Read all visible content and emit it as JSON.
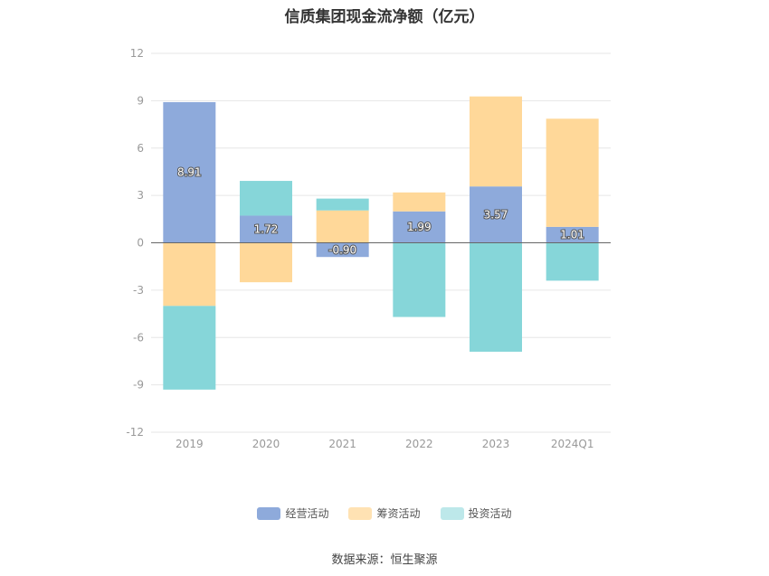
{
  "chart_data": {
    "type": "bar",
    "stacked": true,
    "title": "信质集团现金流净额（亿元）",
    "categories": [
      "2019",
      "2020",
      "2021",
      "2022",
      "2023",
      "2024Q1"
    ],
    "ylim": [
      -12,
      12
    ],
    "yticks": [
      12,
      9,
      6,
      3,
      0,
      -3,
      -6,
      -9,
      -12
    ],
    "grid": true,
    "legend_position": "bottom",
    "series": [
      {
        "name": "经营活动",
        "color": "#8eaadb",
        "values": [
          8.91,
          1.72,
          -0.9,
          1.99,
          3.57,
          1.01
        ],
        "show_labels": true
      },
      {
        "name": "筹资活动",
        "color": "#ffd899",
        "values": [
          -4.0,
          -2.5,
          2.05,
          1.2,
          5.7,
          6.85
        ],
        "show_labels": false
      },
      {
        "name": "投资活动",
        "color": "#86d6d9",
        "values": [
          -5.3,
          2.2,
          0.75,
          -4.7,
          -6.9,
          -2.4
        ],
        "show_labels": false
      }
    ],
    "legend_colors": [
      "#8eaadb",
      "#ffe2b3",
      "#bde8ea"
    ]
  },
  "source": "数据来源：恒生聚源"
}
